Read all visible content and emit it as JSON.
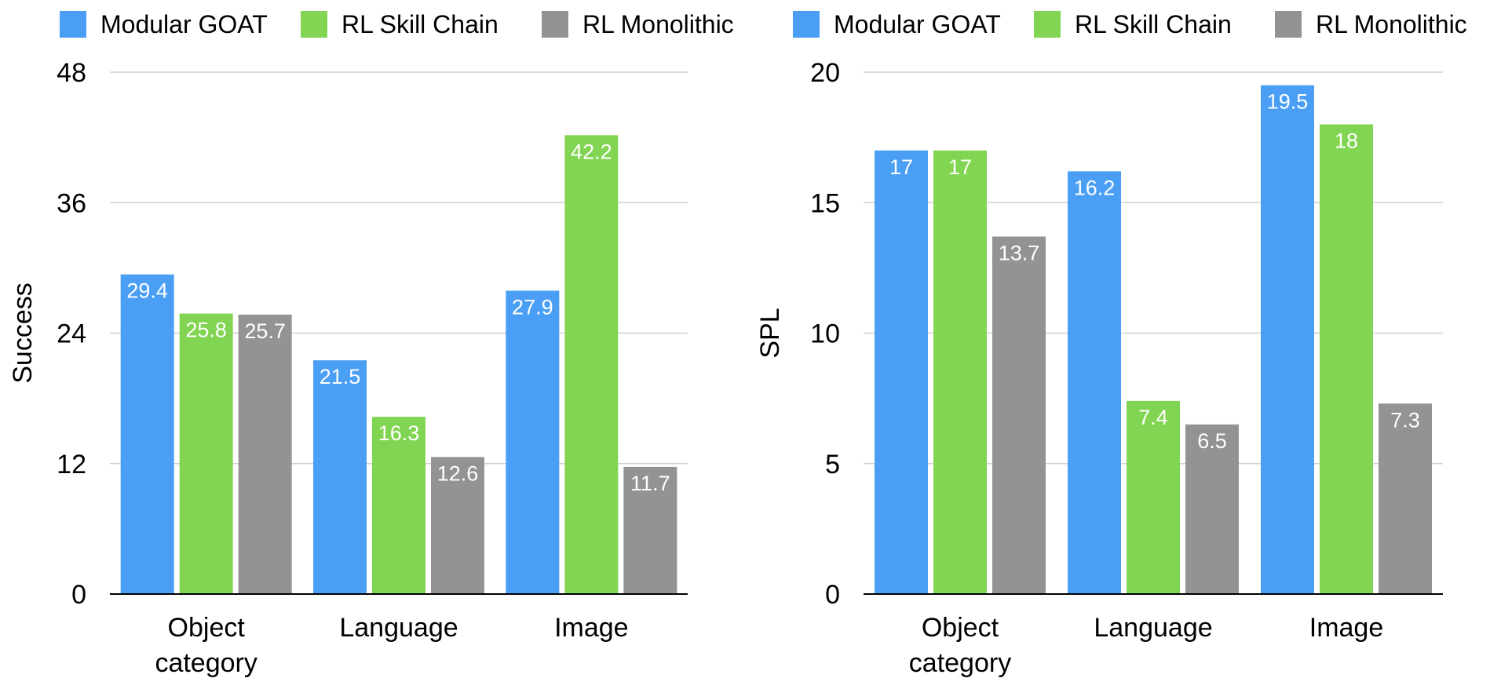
{
  "colors": {
    "series": [
      "#4a9ff5",
      "#82d552",
      "#939393"
    ],
    "gridline": "#cfcfcf",
    "axis": "#000000",
    "text": "#000000",
    "label_inside": "#ffffff"
  },
  "chart_data": [
    {
      "type": "bar",
      "title": "",
      "xlabel": "",
      "ylabel": "Success",
      "ylim": [
        0,
        48
      ],
      "yticks": [
        "0",
        "12",
        "24",
        "36",
        "48"
      ],
      "grid": true,
      "legend_position": "top",
      "categories": [
        "Object category",
        "Language",
        "Image"
      ],
      "category_lines": [
        [
          "Object",
          "category"
        ],
        [
          "Language"
        ],
        [
          "Image"
        ]
      ],
      "series": [
        {
          "name": "Modular GOAT",
          "values": [
            29.4,
            21.5,
            27.9
          ],
          "labels": [
            "29.4",
            "21.5",
            "27.9"
          ]
        },
        {
          "name": "RL Skill Chain",
          "values": [
            25.8,
            16.3,
            42.2
          ],
          "labels": [
            "25.8",
            "16.3",
            "42.2"
          ]
        },
        {
          "name": "RL Monolithic",
          "values": [
            25.7,
            12.6,
            11.7
          ],
          "labels": [
            "25.7",
            "12.6",
            "11.7"
          ]
        }
      ]
    },
    {
      "type": "bar",
      "title": "",
      "xlabel": "",
      "ylabel": "SPL",
      "ylim": [
        0,
        20
      ],
      "yticks": [
        "0",
        "5",
        "10",
        "15",
        "20"
      ],
      "grid": true,
      "legend_position": "top",
      "categories": [
        "Object category",
        "Language",
        "Image"
      ],
      "category_lines": [
        [
          "Object",
          "category"
        ],
        [
          "Language"
        ],
        [
          "Image"
        ]
      ],
      "series": [
        {
          "name": "Modular GOAT",
          "values": [
            17,
            16.2,
            19.5
          ],
          "labels": [
            "17",
            "16.2",
            "19.5"
          ]
        },
        {
          "name": "RL Skill Chain",
          "values": [
            17,
            7.4,
            18
          ],
          "labels": [
            "17",
            "7.4",
            "18"
          ]
        },
        {
          "name": "RL Monolithic",
          "values": [
            13.7,
            6.5,
            7.3
          ],
          "labels": [
            "13.7",
            "6.5",
            "7.3"
          ]
        }
      ]
    }
  ]
}
